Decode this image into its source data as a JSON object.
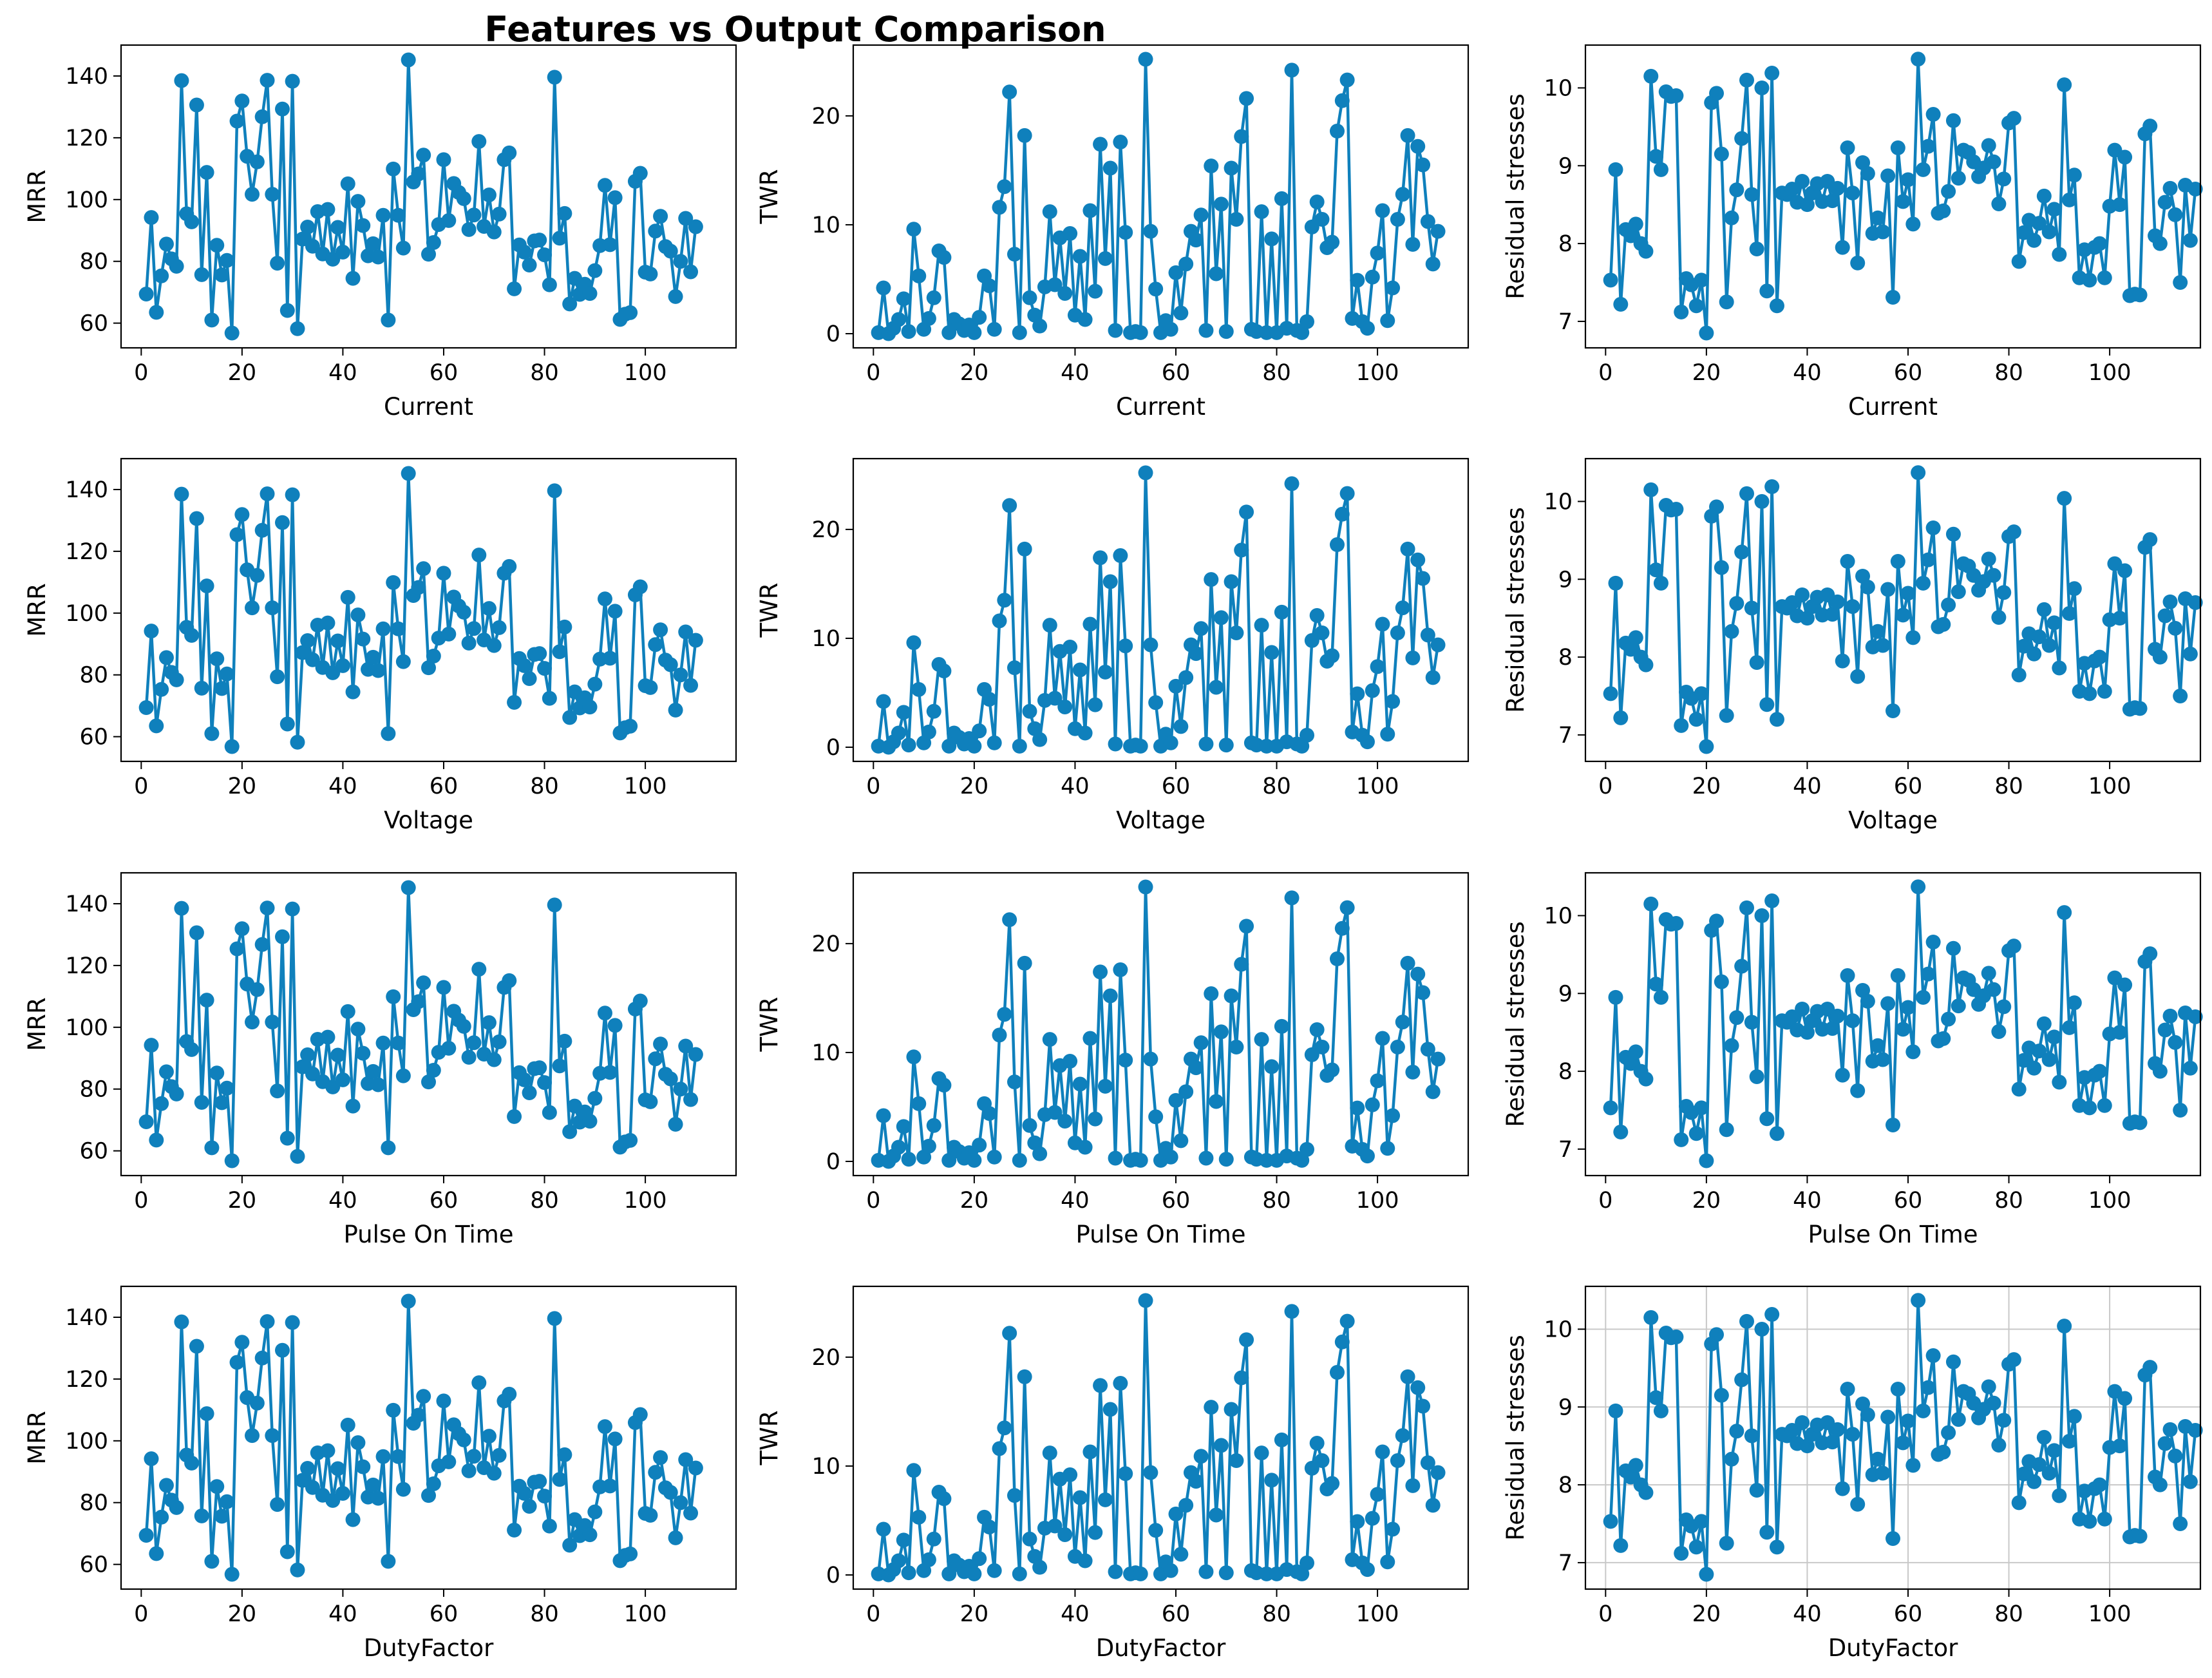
{
  "figure": {
    "title": "Features vs Output Comparison"
  },
  "series": {
    "MRR": [
      69.4,
      94.2,
      63.5,
      75.3,
      85.6,
      80.8,
      78.4,
      138.5,
      95.4,
      92.8,
      130.6,
      75.7,
      108.8,
      61.0,
      85.2,
      75.6,
      80.3,
      56.8,
      125.4,
      131.9,
      114.0,
      101.7,
      112.2,
      126.8,
      138.6,
      101.7,
      79.4,
      129.3,
      64.1,
      138.3,
      58.2,
      87.2,
      91.1,
      84.9,
      96.1,
      82.4,
      96.8,
      80.7,
      91.0,
      83.0,
      105.1,
      74.5,
      99.4,
      91.6,
      81.8,
      85.7,
      81.4,
      94.9,
      61.0,
      109.9,
      94.9,
      84.3,
      145.2,
      105.7,
      108.3,
      114.4,
      82.3,
      86.1,
      91.9,
      112.9,
      93.2,
      105.2,
      102.3,
      100.3,
      90.3,
      95.0,
      118.8,
      91.3,
      101.5,
      89.5,
      95.3,
      112.9,
      115.1,
      71.1,
      85.3,
      83.0,
      78.8,
      86.6,
      86.9,
      82.1,
      72.4,
      139.6,
      87.5,
      95.5,
      66.2,
      74.5,
      69.3,
      72.6,
      69.6,
      77.0,
      85.1,
      104.6,
      85.4,
      100.6,
      61.2,
      62.9,
      63.4,
      105.9,
      108.5,
      76.5,
      75.9,
      89.8,
      94.6,
      84.8,
      83.3,
      68.6,
      80.0,
      93.9,
      76.6,
      91.2
    ],
    "TWR": [
      0.1,
      4.2,
      0.0,
      0.5,
      1.3,
      3.2,
      0.2,
      9.6,
      5.3,
      0.4,
      1.4,
      3.3,
      7.6,
      7.0,
      0.1,
      1.3,
      0.9,
      0.3,
      0.8,
      0.1,
      1.5,
      5.3,
      4.4,
      0.4,
      11.6,
      13.5,
      22.2,
      7.3,
      0.1,
      18.2,
      3.3,
      1.7,
      0.7,
      4.3,
      11.2,
      4.5,
      8.8,
      3.7,
      9.2,
      1.7,
      7.1,
      1.3,
      11.3,
      3.9,
      17.4,
      6.9,
      15.2,
      0.3,
      17.6,
      9.3,
      0.1,
      0.2,
      0.1,
      25.2,
      9.4,
      4.1,
      0.1,
      1.2,
      0.4,
      5.6,
      1.9,
      6.4,
      9.4,
      8.6,
      10.9,
      0.3,
      15.4,
      5.5,
      11.9,
      0.2,
      15.2,
      10.5,
      18.1,
      21.6,
      0.4,
      0.2,
      11.2,
      0.1,
      8.7,
      0.1,
      12.4,
      0.5,
      24.2,
      0.3,
      0.1,
      1.1,
      9.8,
      12.1,
      10.5,
      7.9,
      8.4,
      18.6,
      21.4,
      23.3,
      1.4,
      4.9,
      1.1,
      0.5,
      5.2,
      7.4,
      11.3,
      1.2,
      4.2,
      10.5,
      12.8,
      18.2,
      8.2,
      17.2,
      15.5,
      10.3,
      6.4,
      9.4
    ],
    "Residual stresses": [
      7.53,
      8.95,
      7.22,
      8.18,
      8.1,
      8.25,
      8.0,
      7.9,
      10.15,
      9.12,
      8.95,
      9.95,
      9.89,
      9.9,
      7.12,
      7.55,
      7.47,
      7.2,
      7.53,
      6.85,
      9.81,
      9.93,
      9.15,
      7.25,
      8.33,
      8.69,
      9.35,
      10.1,
      8.63,
      7.93,
      10.0,
      7.39,
      10.19,
      7.2,
      8.65,
      8.63,
      8.7,
      8.53,
      8.8,
      8.5,
      8.65,
      8.77,
      8.54,
      8.8,
      8.55,
      8.71,
      7.95,
      9.23,
      8.65,
      7.75,
      9.04,
      8.9,
      8.13,
      8.33,
      8.15,
      8.87,
      7.31,
      9.23,
      8.54,
      8.82,
      8.25,
      10.37,
      8.95,
      9.25,
      9.66,
      8.39,
      8.42,
      8.67,
      9.58,
      8.84,
      9.2,
      9.17,
      9.05,
      8.86,
      8.97,
      9.26,
      9.05,
      8.51,
      8.83,
      9.55,
      9.61,
      7.77,
      8.14,
      8.3,
      8.04,
      8.26,
      8.61,
      8.15,
      8.44,
      7.86,
      10.04,
      8.56,
      8.88,
      7.56,
      7.92,
      7.53,
      7.95,
      8.0,
      7.56,
      8.48,
      9.2,
      8.5,
      9.11,
      7.33,
      7.35,
      7.34,
      9.41,
      9.51,
      8.1,
      8.0,
      8.53,
      8.71,
      8.37,
      7.5,
      8.75,
      8.04,
      8.7
    ]
  },
  "chart_data": [
    {
      "id": "c11",
      "type": "line",
      "xlabel": "Current",
      "ylabel": "MRR",
      "series_key": "MRR",
      "xlim": [
        -4,
        118
      ],
      "ylim": [
        52,
        150
      ],
      "xticks": [
        0,
        20,
        40,
        60,
        80,
        100
      ],
      "yticks": [
        60,
        80,
        100,
        120,
        140
      ],
      "grid": false
    },
    {
      "id": "c12",
      "type": "line",
      "xlabel": "Current",
      "ylabel": "TWR",
      "series_key": "TWR",
      "xlim": [
        -4,
        118
      ],
      "ylim": [
        -1.3,
        26.5
      ],
      "xticks": [
        0,
        20,
        40,
        60,
        80,
        100
      ],
      "yticks": [
        0,
        10,
        20
      ],
      "grid": false
    },
    {
      "id": "c13",
      "type": "line",
      "xlabel": "Current",
      "ylabel": "Residual stresses",
      "series_key": "Residual stresses",
      "xlim": [
        -4,
        118
      ],
      "ylim": [
        6.66,
        10.55
      ],
      "xticks": [
        0,
        20,
        40,
        60,
        80,
        100
      ],
      "yticks": [
        7,
        8,
        9,
        10
      ],
      "grid": false
    },
    {
      "id": "c21",
      "type": "line",
      "xlabel": "Voltage",
      "ylabel": "MRR",
      "series_key": "MRR",
      "xlim": [
        -4,
        118
      ],
      "ylim": [
        52,
        150
      ],
      "xticks": [
        0,
        20,
        40,
        60,
        80,
        100
      ],
      "yticks": [
        60,
        80,
        100,
        120,
        140
      ],
      "grid": false
    },
    {
      "id": "c22",
      "type": "line",
      "xlabel": "Voltage",
      "ylabel": "TWR",
      "series_key": "TWR",
      "xlim": [
        -4,
        118
      ],
      "ylim": [
        -1.3,
        26.5
      ],
      "xticks": [
        0,
        20,
        40,
        60,
        80,
        100
      ],
      "yticks": [
        0,
        10,
        20
      ],
      "grid": false
    },
    {
      "id": "c23",
      "type": "line",
      "xlabel": "Voltage",
      "ylabel": "Residual stresses",
      "series_key": "Residual stresses",
      "xlim": [
        -4,
        118
      ],
      "ylim": [
        6.66,
        10.55
      ],
      "xticks": [
        0,
        20,
        40,
        60,
        80,
        100
      ],
      "yticks": [
        7,
        8,
        9,
        10
      ],
      "grid": false
    },
    {
      "id": "c31",
      "type": "line",
      "xlabel": "Pulse On Time",
      "ylabel": "MRR",
      "series_key": "MRR",
      "xlim": [
        -4,
        118
      ],
      "ylim": [
        52,
        150
      ],
      "xticks": [
        0,
        20,
        40,
        60,
        80,
        100
      ],
      "yticks": [
        60,
        80,
        100,
        120,
        140
      ],
      "grid": false
    },
    {
      "id": "c32",
      "type": "line",
      "xlabel": "Pulse On Time",
      "ylabel": "TWR",
      "series_key": "TWR",
      "xlim": [
        -4,
        118
      ],
      "ylim": [
        -1.3,
        26.5
      ],
      "xticks": [
        0,
        20,
        40,
        60,
        80,
        100
      ],
      "yticks": [
        0,
        10,
        20
      ],
      "grid": false
    },
    {
      "id": "c33",
      "type": "line",
      "xlabel": "Pulse On Time",
      "ylabel": "Residual stresses",
      "series_key": "Residual stresses",
      "xlim": [
        -4,
        118
      ],
      "ylim": [
        6.66,
        10.55
      ],
      "xticks": [
        0,
        20,
        40,
        60,
        80,
        100
      ],
      "yticks": [
        7,
        8,
        9,
        10
      ],
      "grid": false
    },
    {
      "id": "c41",
      "type": "line",
      "xlabel": "DutyFactor",
      "ylabel": "MRR",
      "series_key": "MRR",
      "xlim": [
        -4,
        118
      ],
      "ylim": [
        52,
        150
      ],
      "xticks": [
        0,
        20,
        40,
        60,
        80,
        100
      ],
      "yticks": [
        60,
        80,
        100,
        120,
        140
      ],
      "grid": false
    },
    {
      "id": "c42",
      "type": "line",
      "xlabel": "DutyFactor",
      "ylabel": "TWR",
      "series_key": "TWR",
      "xlim": [
        -4,
        118
      ],
      "ylim": [
        -1.3,
        26.5
      ],
      "xticks": [
        0,
        20,
        40,
        60,
        80,
        100
      ],
      "yticks": [
        0,
        10,
        20
      ],
      "grid": false
    },
    {
      "id": "c43",
      "type": "line",
      "xlabel": "DutyFactor",
      "ylabel": "Residual stresses",
      "series_key": "Residual stresses",
      "xlim": [
        -4,
        118
      ],
      "ylim": [
        6.66,
        10.55
      ],
      "xticks": [
        0,
        20,
        40,
        60,
        80,
        100
      ],
      "yticks": [
        7,
        8,
        9,
        10
      ],
      "grid": true
    }
  ],
  "colors": {
    "line": "#0f80bc",
    "grid": "#c8c8c8",
    "axes": "#000000",
    "text": "#000000"
  }
}
